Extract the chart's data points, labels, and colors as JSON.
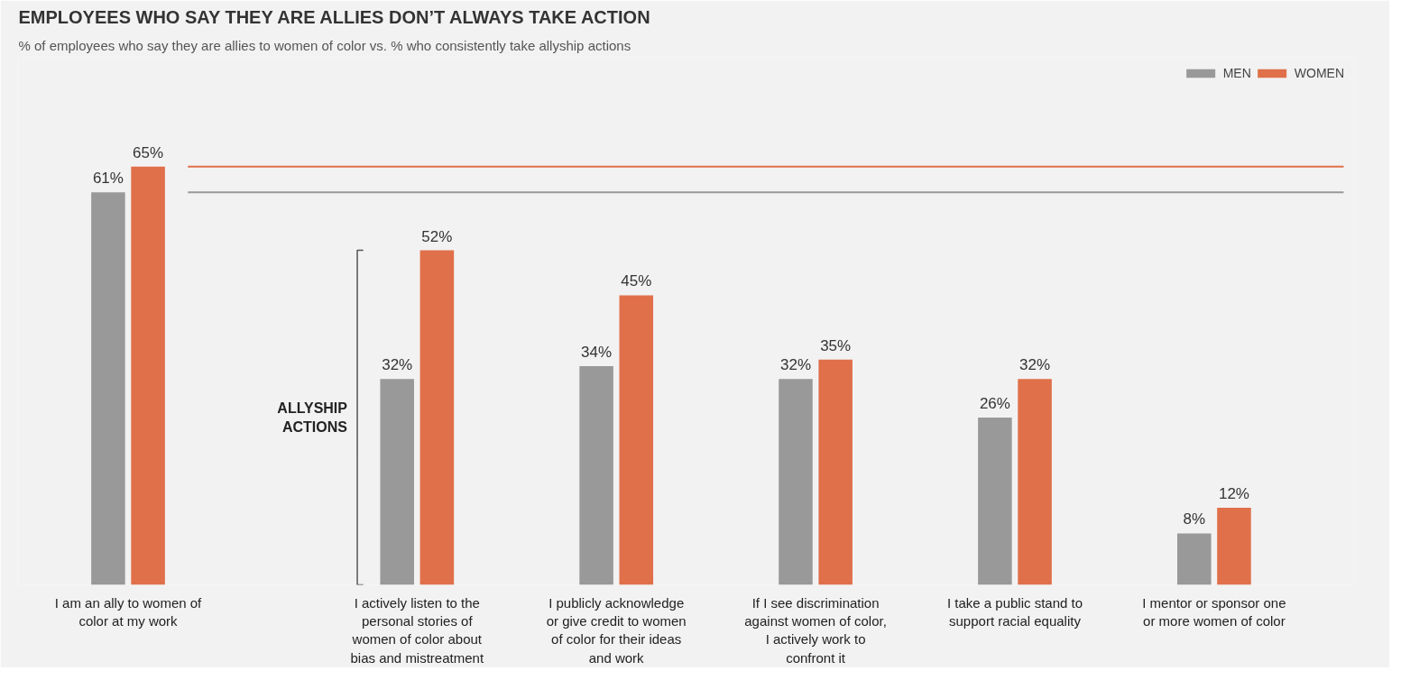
{
  "chart_data": {
    "type": "bar",
    "title": "EMPLOYEES WHO SAY THEY ARE ALLIES DON’T ALWAYS TAKE ACTION",
    "subtitle": "% of employees who say they are allies to women of color vs. % who consistently take allyship actions",
    "categories": [
      "I am an ally to women of color at my work",
      "I actively listen to the personal stories of women of color about bias and mistreatment",
      "I publicly acknowledge or give credit to women of color for their ideas and work",
      "If I see discrimination against women of color, I actively work to confront it",
      "I take a public stand to support racial equality",
      "I mentor or sponsor one or more women of color"
    ],
    "series": [
      {
        "name": "MEN",
        "color": "#999999",
        "values": [
          61,
          32,
          34,
          32,
          26,
          8
        ],
        "value_labels": [
          "61%",
          "32%",
          "34%",
          "32%",
          "26%",
          "8%"
        ]
      },
      {
        "name": "WOMEN",
        "color": "#e0704a",
        "values": [
          65,
          52,
          45,
          35,
          32,
          12
        ],
        "value_labels": [
          "65%",
          "52%",
          "45%",
          "35%",
          "32%",
          "12%"
        ]
      }
    ],
    "ylim": [
      0,
      82
    ],
    "tick_labels": "x",
    "grid": false,
    "legend": "top right",
    "ref_lines": [
      {
        "axis": "y",
        "value": 65,
        "color": "#e0704a"
      },
      {
        "axis": "y",
        "value": 61,
        "color": "#999999"
      }
    ],
    "annotations": [
      "ALLYSHIP ACTIONS"
    ]
  }
}
